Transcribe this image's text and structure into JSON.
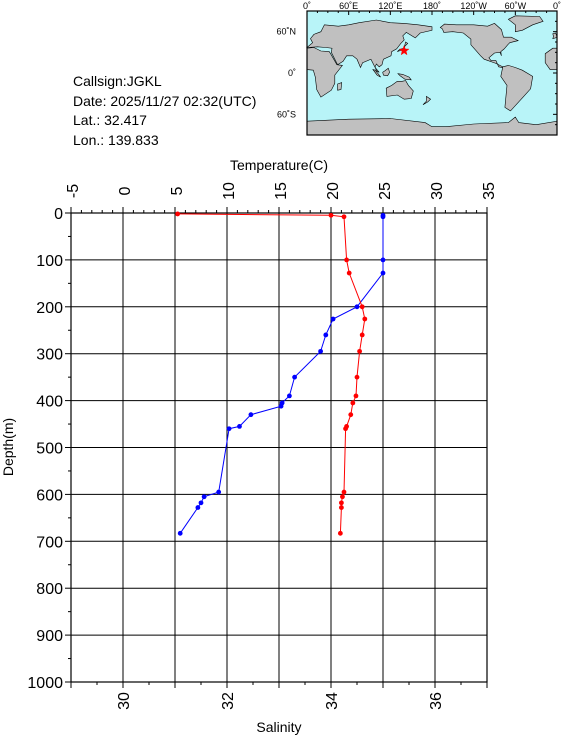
{
  "station": {
    "callsign": "Callsign:JGKL",
    "date": "Date:  2025/11/27 02:32(UTC)",
    "lat": "Lat.:  32.417",
    "lon": "Lon.:  139.833"
  },
  "map": {
    "lon_labels": [
      "0˚",
      "60˚E",
      "120˚E",
      "180˚",
      "120˚W",
      "60˚W",
      "0˚"
    ],
    "lat_labels": [
      "60˚N",
      "0˚",
      "60˚S"
    ],
    "marker": {
      "lon": 139.833,
      "lat": 32.417
    },
    "colors": {
      "ocean": "#b8f4f8",
      "land": "#c0c0c0",
      "marker": "#ff0000"
    }
  },
  "chart_data": {
    "type": "line",
    "top_axis": {
      "label": "Temperature(C)",
      "range": [
        -5,
        35
      ],
      "ticks": [
        -5,
        0,
        5,
        10,
        15,
        20,
        25,
        30,
        35
      ]
    },
    "bottom_axis": {
      "label": "Salinity",
      "range": [
        29,
        37
      ],
      "ticks": [
        30,
        32,
        34,
        36
      ]
    },
    "y_axis": {
      "label": "Depth(m)",
      "range": [
        0,
        1000
      ],
      "inverted": true,
      "ticks": [
        0,
        100,
        200,
        300,
        400,
        500,
        600,
        700,
        800,
        900,
        1000
      ]
    },
    "grid": true,
    "series": [
      {
        "name": "",
        "axis": "temperature",
        "color": "#0000ff",
        "points": [
          [
            25.0,
            5
          ],
          [
            25.0,
            8
          ],
          [
            25.0,
            100
          ],
          [
            25.0,
            128
          ],
          [
            22.5,
            200
          ],
          [
            20.2,
            226
          ],
          [
            19.5,
            260
          ],
          [
            19.0,
            295
          ],
          [
            16.5,
            350
          ],
          [
            16.0,
            390
          ],
          [
            15.3,
            405
          ],
          [
            15.2,
            412
          ],
          [
            12.3,
            430
          ],
          [
            11.2,
            455
          ],
          [
            10.2,
            460
          ],
          [
            9.2,
            595
          ],
          [
            7.8,
            605
          ],
          [
            7.5,
            618
          ],
          [
            7.2,
            628
          ],
          [
            5.5,
            683
          ]
        ]
      },
      {
        "name": "",
        "axis": "salinity",
        "color": "#ff0000",
        "points": [
          [
            31.05,
            2
          ],
          [
            34.0,
            5
          ],
          [
            34.25,
            8
          ],
          [
            34.3,
            100
          ],
          [
            34.35,
            128
          ],
          [
            34.6,
            200
          ],
          [
            34.65,
            226
          ],
          [
            34.6,
            260
          ],
          [
            34.55,
            295
          ],
          [
            34.5,
            350
          ],
          [
            34.48,
            390
          ],
          [
            34.42,
            405
          ],
          [
            34.38,
            430
          ],
          [
            34.3,
            455
          ],
          [
            34.28,
            460
          ],
          [
            34.25,
            595
          ],
          [
            34.22,
            605
          ],
          [
            34.2,
            618
          ],
          [
            34.2,
            628
          ],
          [
            34.18,
            683
          ]
        ]
      }
    ]
  }
}
